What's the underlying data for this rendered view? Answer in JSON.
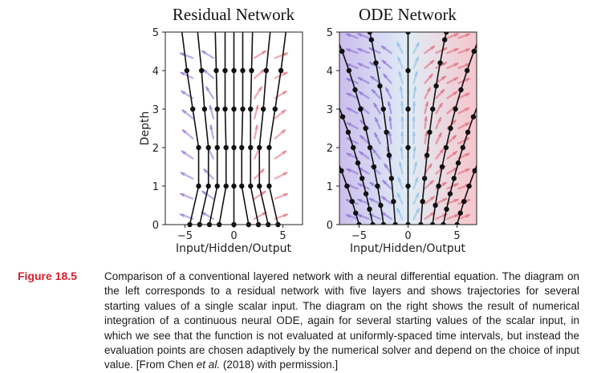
{
  "figure": {
    "panels": [
      {
        "title": "Residual Network",
        "xlabel": "Input/Hidden/Output",
        "ylabel": "Depth",
        "xticks": [
          "−5",
          "0",
          "5"
        ],
        "yticks": [
          "0",
          "1",
          "2",
          "3",
          "4",
          "5"
        ],
        "xlim": [
          -7,
          7
        ],
        "ylim": [
          0,
          5
        ],
        "background": "#ffffff",
        "evaluation_depths": [
          0,
          1,
          2,
          3,
          4,
          5
        ],
        "trajectories": [
          {
            "x": [
              -4.5,
              -3.6,
              -3.6,
              -4.2,
              -4.8,
              -5.3
            ]
          },
          {
            "x": [
              -3.5,
              -2.6,
              -2.6,
              -3.0,
              -3.3,
              -3.7
            ]
          },
          {
            "x": [
              -2.5,
              -1.7,
              -1.7,
              -1.7,
              -1.8,
              -1.9
            ]
          },
          {
            "x": [
              -1.5,
              -0.8,
              -0.8,
              -0.9,
              -0.9,
              -0.9
            ]
          },
          {
            "x": [
              0.0,
              0.0,
              0.0,
              0.0,
              0.0,
              0.0
            ]
          },
          {
            "x": [
              1.5,
              0.8,
              0.8,
              0.9,
              0.9,
              0.9
            ]
          },
          {
            "x": [
              2.5,
              1.7,
              1.7,
              1.7,
              1.8,
              1.9
            ]
          },
          {
            "x": [
              3.5,
              2.6,
              2.6,
              3.0,
              3.3,
              3.7
            ]
          },
          {
            "x": [
              4.5,
              3.6,
              3.6,
              4.2,
              4.8,
              5.3
            ]
          }
        ]
      },
      {
        "title": "ODE Network",
        "xlabel": "Input/Hidden/Output",
        "ylabel": "Depth",
        "xticks": [
          "−5",
          "0",
          "5"
        ],
        "yticks": [
          "0",
          "1",
          "2",
          "3",
          "4",
          "5"
        ],
        "xlim": [
          -7,
          7
        ],
        "ylim": [
          0,
          5
        ],
        "background_gradient": [
          "#b9a8e6",
          "#d6e6f3",
          "#f2b3bb"
        ],
        "trajectories": [
          {
            "x0": -5.0,
            "depths": [
              0,
              0.3,
              0.6,
              1.0,
              1.4,
              1.8,
              2.2,
              2.6,
              3.0,
              3.4,
              3.6
            ]
          },
          {
            "x0": -3.6,
            "depths": [
              0,
              0.4,
              0.8,
              1.2,
              1.6,
              2.0,
              2.4,
              2.8,
              3.2,
              3.6,
              4.0,
              4.4,
              4.8,
              5.0
            ]
          },
          {
            "x0": -2.5,
            "depths": [
              0,
              0.5,
              1.0,
              1.5,
              2.0,
              2.5,
              3.0,
              3.5,
              4.0,
              4.5,
              5.0
            ]
          },
          {
            "x0": -1.3,
            "depths": [
              0,
              0.6,
              1.2,
              1.8,
              2.4,
              3.0,
              3.6,
              4.2,
              4.8,
              5.0
            ]
          },
          {
            "x0": 0.0,
            "depths": [
              0,
              1.0,
              2.0,
              3.0,
              4.0,
              5.0
            ]
          },
          {
            "x0": 1.3,
            "depths": [
              0,
              0.6,
              1.2,
              1.8,
              2.4,
              3.0,
              3.6,
              4.2,
              4.8,
              5.0
            ]
          },
          {
            "x0": 2.5,
            "depths": [
              0,
              0.5,
              1.0,
              1.5,
              2.0,
              2.5,
              3.0,
              3.5,
              4.0,
              4.5,
              5.0
            ]
          },
          {
            "x0": 3.6,
            "depths": [
              0,
              0.4,
              0.8,
              1.2,
              1.6,
              2.0,
              2.4,
              2.8,
              3.2,
              3.6,
              4.0,
              4.4,
              4.8,
              5.0
            ]
          },
          {
            "x0": 5.0,
            "depths": [
              0,
              0.3,
              0.6,
              1.0,
              1.4,
              1.8,
              2.2,
              2.6,
              3.0,
              3.4,
              3.6
            ]
          }
        ]
      }
    ]
  },
  "caption": {
    "label": "Figure 18.5",
    "text_before_italic": "Comparison of a conventional layered network with a neural differential equation. The diagram on the left corresponds to a residual network with five layers and shows trajectories for several starting values of a single scalar input. The diagram on the right shows the result of numerical integration of a continuous neural ODE, again for several starting values of the scalar input, in which we see that the function is not evaluated at uniformly-spaced time intervals, but instead the evaluation points are chosen adaptively by the numerical solver and depend on the choice of input value. [From Chen ",
    "italic": "et al.",
    "text_after_italic": " (2018) with permission.]"
  },
  "colors": {
    "caption_label": "#d6202a",
    "arrow_left": "#8f6fd6",
    "arrow_mid": "#8fbfe6",
    "arrow_yellow": "#f0cf6a",
    "arrow_right": "#e36a7a",
    "trajectory": "#111111"
  }
}
